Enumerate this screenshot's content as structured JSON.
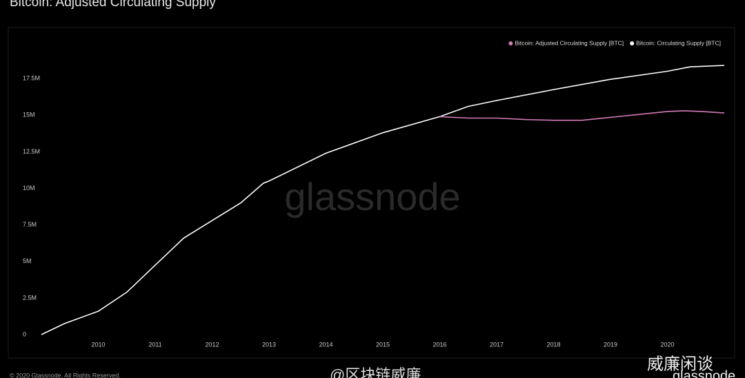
{
  "chart_data": {
    "type": "line",
    "title": "Bitcoin: Adjusted Circulating Supply",
    "watermark": "glassnode",
    "footer": "© 2020 Glassnode. All Rights Reserved.",
    "overlay_texts": [
      "@区块链威廉",
      "威廉闲谈",
      "glassnode"
    ],
    "xlim": [
      2009,
      2021
    ],
    "xticks": [
      2010,
      2011,
      2012,
      2013,
      2014,
      2015,
      2016,
      2017,
      2018,
      2019,
      2020
    ],
    "ylim": [
      0,
      20000000
    ],
    "yticks": [
      0,
      {
        "value": 2500000,
        "label": "2.5M"
      },
      {
        "value": 5000000,
        "label": "5M"
      },
      {
        "value": 7500000,
        "label": "7.5M"
      },
      {
        "value": 10000000,
        "label": "10M"
      },
      {
        "value": 12500000,
        "label": "12.5M"
      },
      {
        "value": 15000000,
        "label": "15M"
      },
      {
        "value": 17500000,
        "label": "17.5M"
      }
    ],
    "grid": false,
    "legend": "top-right",
    "series": [
      {
        "name": "Bitcoin: Adjusted Circulating Supply [BTC]",
        "color": "#d57bb8",
        "x": [
          2016.0,
          2016.5,
          2017.0,
          2017.5,
          2018.0,
          2018.5,
          2019.0,
          2019.5,
          2020.0,
          2020.3,
          2020.6,
          2021.0
        ],
        "values": [
          14900000,
          14800000,
          14800000,
          14700000,
          14650000,
          14650000,
          14850000,
          15050000,
          15250000,
          15300000,
          15250000,
          15150000
        ]
      },
      {
        "name": "Bitcoin: Circulating Supply [BTC]",
        "color": "#ffffff",
        "x": [
          2009.0,
          2009.4,
          2010.0,
          2010.5,
          2011.0,
          2011.5,
          2012.0,
          2012.5,
          2012.9,
          2013.0,
          2014.0,
          2015.0,
          2016.0,
          2016.5,
          2017.0,
          2018.0,
          2019.0,
          2020.0,
          2020.4,
          2021.0
        ],
        "values": [
          0,
          750000,
          1600000,
          2900000,
          4750000,
          6600000,
          7800000,
          9000000,
          10350000,
          10500000,
          12400000,
          13800000,
          14900000,
          15600000,
          16000000,
          16750000,
          17450000,
          18000000,
          18300000,
          18400000
        ]
      }
    ]
  }
}
